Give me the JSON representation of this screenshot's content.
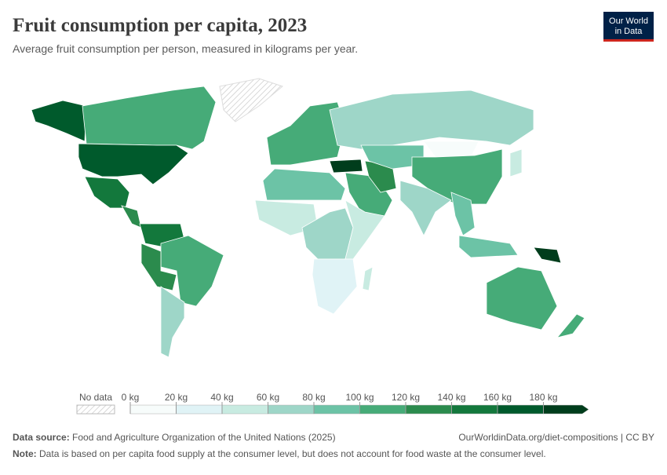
{
  "chart_data": {
    "type": "map",
    "title": "Fruit consumption per capita, 2023",
    "subtitle": "Average fruit consumption per person, measured in kilograms per year.",
    "logo": [
      "Our World",
      "in Data"
    ],
    "no_data_label": "No data",
    "legend_ticks": [
      {
        "value": 0,
        "label": "0 kg"
      },
      {
        "value": 20,
        "label": "20 kg"
      },
      {
        "value": 40,
        "label": "40 kg"
      },
      {
        "value": 60,
        "label": "60 kg"
      },
      {
        "value": 80,
        "label": "80 kg"
      },
      {
        "value": 100,
        "label": "100 kg"
      },
      {
        "value": 120,
        "label": "120 kg"
      },
      {
        "value": 140,
        "label": "140 kg"
      },
      {
        "value": 160,
        "label": "160 kg"
      },
      {
        "value": 180,
        "label": "180 kg"
      }
    ],
    "colors": [
      "#f7fcfb",
      "#e0f3f6",
      "#c8ebe1",
      "#9ed6c8",
      "#6cc3a6",
      "#46ab78",
      "#2b8b4d",
      "#13783c",
      "#005a2c",
      "#003d1c"
    ],
    "region_values": [
      170,
      100,
      170,
      140,
      120,
      150,
      110,
      120,
      70,
      110,
      70,
      180,
      100,
      130,
      80,
      15,
      110,
      75,
      90,
      80,
      180,
      40,
      100,
      110,
      90,
      40,
      70,
      40,
      30,
      50
    ],
    "source_label": "Data source:",
    "source": "Food and Agriculture Organization of the United Nations (2025)",
    "url": "OurWorldinData.org/diet-compositions | CC BY",
    "note_label": "Note:",
    "note": "Data is based on per capita food supply at the consumer level, but does not account for food waste at the consumer level."
  }
}
